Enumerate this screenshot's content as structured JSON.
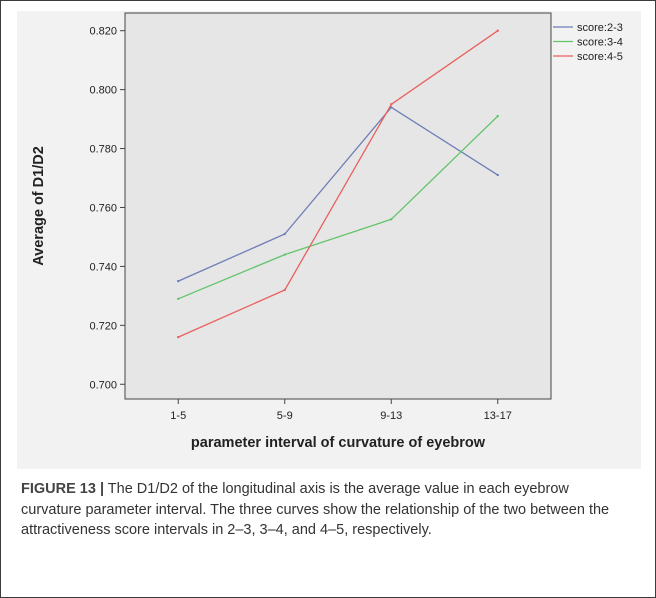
{
  "chart_data": {
    "type": "line",
    "categories": [
      "1-5",
      "5-9",
      "9-13",
      "13-17"
    ],
    "xlabel": "parameter interval of curvature of eyebrow",
    "ylabel": "Average of D1/D2",
    "ylim": [
      0.695,
      0.826
    ],
    "yticks": [
      "0.700",
      "0.720",
      "0.740",
      "0.760",
      "0.780",
      "0.800",
      "0.820"
    ],
    "ytick_values": [
      0.7,
      0.72,
      0.74,
      0.76,
      0.78,
      0.8,
      0.82
    ],
    "grid": false,
    "legend_position": "top-right",
    "series": [
      {
        "name": "score:2-3",
        "color": "#6f7db8",
        "values": [
          0.735,
          0.751,
          0.794,
          0.771
        ]
      },
      {
        "name": "score:3-4",
        "color": "#62c46a",
        "values": [
          0.729,
          0.744,
          0.756,
          0.791
        ]
      },
      {
        "name": "score:4-5",
        "color": "#e8615e",
        "values": [
          0.716,
          0.732,
          0.795,
          0.82
        ]
      }
    ]
  },
  "caption": {
    "label": "FIGURE 13 |",
    "text": " The D1/D2 of the longitudinal axis is the average value in each eyebrow curvature parameter interval. The three curves show the relationship of the two between the attractiveness score intervals in 2–3, 3–4, and 4–5, respectively."
  }
}
